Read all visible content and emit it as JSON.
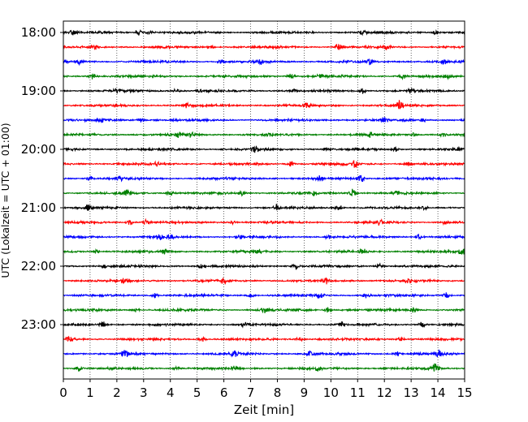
{
  "chart_data": {
    "type": "line",
    "title": "",
    "xlabel": "Zeit  [min]",
    "ylabel": "UTC (Lokalzeit = UTC + 01:00)",
    "xlim": [
      0,
      15
    ],
    "x_ticks": [
      0,
      1,
      2,
      3,
      4,
      5,
      6,
      7,
      8,
      9,
      10,
      11,
      12,
      13,
      14,
      15
    ],
    "y_ticks": [
      {
        "label": "18:00",
        "row": 0
      },
      {
        "label": "19:00",
        "row": 4
      },
      {
        "label": "20:00",
        "row": 8
      },
      {
        "label": "21:00",
        "row": 12
      },
      {
        "label": "22:00",
        "row": 16
      },
      {
        "label": "23:00",
        "row": 20
      }
    ],
    "grid": "vertical dotted",
    "legend": "none",
    "rows_per_hour": 4,
    "minutes_per_row": 15,
    "row_colors": [
      "#000000",
      "#ff0000",
      "#0000ff",
      "#008000"
    ],
    "traces": [
      {
        "start": "18:00",
        "events": [
          [
            0.3,
            0.6
          ],
          [
            2.8,
            0.9
          ],
          [
            3.2,
            0.6
          ],
          [
            11.2,
            0.7
          ],
          [
            13.9,
            0.6
          ]
        ]
      },
      {
        "start": "18:15",
        "events": [
          [
            10.3,
            1.2
          ],
          [
            1.2,
            0.6
          ],
          [
            5.5,
            0.5
          ],
          [
            12.1,
            0.6
          ]
        ]
      },
      {
        "start": "18:30",
        "events": [
          [
            0.6,
            0.9
          ],
          [
            5.9,
            0.8
          ],
          [
            7.4,
            0.8
          ],
          [
            11.4,
            0.9
          ],
          [
            14.2,
            0.6
          ]
        ]
      },
      {
        "start": "18:45",
        "events": [
          [
            1.1,
            0.9
          ],
          [
            8.5,
            1.0
          ],
          [
            9.6,
            0.7
          ],
          [
            12.7,
            0.8
          ],
          [
            14.4,
            0.6
          ]
        ]
      },
      {
        "start": "19:00",
        "events": [
          [
            2.0,
            0.6
          ],
          [
            4.2,
            0.6
          ],
          [
            5.1,
            0.5
          ],
          [
            8.6,
            0.5
          ],
          [
            11.2,
            0.9
          ],
          [
            13.0,
            0.6
          ]
        ]
      },
      {
        "start": "19:15",
        "events": [
          [
            12.6,
            1.8
          ],
          [
            9.1,
            0.6
          ],
          [
            4.6,
            0.5
          ]
        ]
      },
      {
        "start": "19:30",
        "events": [
          [
            1.4,
            0.6
          ],
          [
            2.9,
            0.7
          ],
          [
            12.0,
            1.0
          ],
          [
            13.4,
            0.6
          ]
        ]
      },
      {
        "start": "19:45",
        "events": [
          [
            4.3,
            1.0
          ],
          [
            4.8,
            0.9
          ],
          [
            7.7,
            0.7
          ],
          [
            11.5,
            0.7
          ],
          [
            13.1,
            0.6
          ],
          [
            14.2,
            0.6
          ]
        ]
      },
      {
        "start": "20:00",
        "events": [
          [
            7.2,
            0.9
          ],
          [
            9.8,
            0.7
          ],
          [
            12.4,
            0.6
          ],
          [
            14.8,
            0.5
          ]
        ]
      },
      {
        "start": "20:15",
        "events": [
          [
            10.9,
            1.0
          ],
          [
            8.5,
            0.8
          ],
          [
            3.5,
            0.6
          ],
          [
            12.9,
            0.6
          ]
        ]
      },
      {
        "start": "20:30",
        "events": [
          [
            11.1,
            1.4
          ],
          [
            1.0,
            0.6
          ],
          [
            9.6,
            0.8
          ],
          [
            2.1,
            0.6
          ]
        ]
      },
      {
        "start": "20:45",
        "events": [
          [
            2.4,
            1.0
          ],
          [
            10.8,
            1.2
          ],
          [
            4.0,
            0.8
          ],
          [
            6.7,
            0.7
          ],
          [
            9.3,
            0.8
          ],
          [
            12.5,
            0.6
          ]
        ]
      },
      {
        "start": "21:00",
        "events": [
          [
            0.9,
            0.9
          ],
          [
            8.0,
            0.9
          ],
          [
            10.3,
            0.8
          ],
          [
            13.5,
            0.6
          ]
        ]
      },
      {
        "start": "21:15",
        "events": [
          [
            2.5,
            0.9
          ],
          [
            3.1,
            1.0
          ],
          [
            6.3,
            0.6
          ],
          [
            11.8,
            0.9
          ],
          [
            14.3,
            0.6
          ]
        ]
      },
      {
        "start": "21:30",
        "events": [
          [
            3.6,
            0.9
          ],
          [
            4.0,
            0.8
          ],
          [
            13.3,
            1.0
          ],
          [
            6.6,
            0.6
          ],
          [
            9.9,
            0.6
          ]
        ]
      },
      {
        "start": "21:45",
        "events": [
          [
            14.9,
            1.3
          ],
          [
            3.8,
            0.8
          ],
          [
            7.3,
            0.8
          ],
          [
            11.2,
            0.7
          ],
          [
            1.2,
            0.6
          ]
        ]
      },
      {
        "start": "22:00",
        "events": [
          [
            8.7,
            0.9
          ],
          [
            1.5,
            0.6
          ],
          [
            5.2,
            0.6
          ],
          [
            11.8,
            0.7
          ]
        ]
      },
      {
        "start": "22:15",
        "events": [
          [
            9.8,
            0.8
          ],
          [
            6.0,
            0.7
          ],
          [
            2.3,
            0.6
          ],
          [
            12.9,
            0.6
          ]
        ]
      },
      {
        "start": "22:30",
        "events": [
          [
            9.6,
            1.0
          ],
          [
            14.3,
            1.1
          ],
          [
            3.4,
            0.7
          ],
          [
            7.0,
            0.6
          ],
          [
            11.3,
            0.7
          ]
        ]
      },
      {
        "start": "22:45",
        "events": [
          [
            13.1,
            0.8
          ],
          [
            2.7,
            0.6
          ],
          [
            7.5,
            0.7
          ],
          [
            9.9,
            0.7
          ]
        ]
      },
      {
        "start": "23:00",
        "events": [
          [
            1.5,
            0.9
          ],
          [
            6.8,
            0.7
          ],
          [
            10.4,
            0.7
          ],
          [
            13.4,
            0.7
          ]
        ]
      },
      {
        "start": "23:15",
        "events": [
          [
            0.2,
            1.2
          ],
          [
            5.2,
            0.7
          ],
          [
            8.8,
            0.8
          ],
          [
            12.6,
            0.6
          ]
        ]
      },
      {
        "start": "23:30",
        "events": [
          [
            2.3,
            0.9
          ],
          [
            6.4,
            0.9
          ],
          [
            9.2,
            0.8
          ],
          [
            14.0,
            1.3
          ],
          [
            12.5,
            0.8
          ]
        ]
      },
      {
        "start": "23:45",
        "events": [
          [
            0.6,
            0.9
          ],
          [
            4.2,
            0.6
          ],
          [
            6.4,
            0.8
          ],
          [
            9.5,
            0.7
          ],
          [
            13.9,
            1.2
          ]
        ]
      }
    ]
  }
}
